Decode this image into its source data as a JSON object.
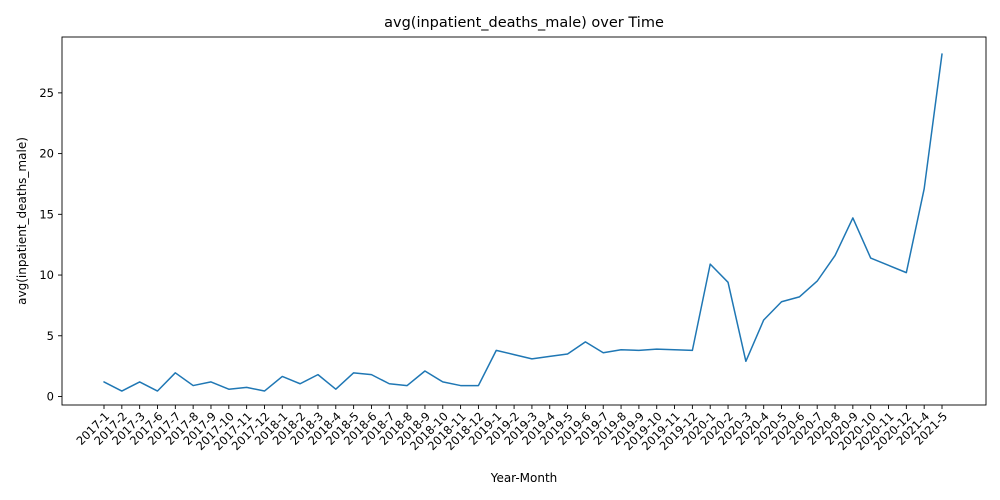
{
  "chart_data": {
    "type": "line",
    "title": "avg(inpatient_deaths_male) over Time",
    "xlabel": "Year-Month",
    "ylabel": "avg(inpatient_deaths_male)",
    "ylim": [
      -0.7,
      29.6
    ],
    "yticks": [
      0,
      5,
      10,
      15,
      20,
      25
    ],
    "grid": false,
    "line_color": "#1f77b4",
    "categories": [
      "2017-1",
      "2017-2",
      "2017-3",
      "2017-6",
      "2017-7",
      "2017-8",
      "2017-9",
      "2017-10",
      "2017-11",
      "2017-12",
      "2018-1",
      "2018-2",
      "2018-3",
      "2018-4",
      "2018-5",
      "2018-6",
      "2018-7",
      "2018-8",
      "2018-9",
      "2018-10",
      "2018-11",
      "2018-12",
      "2019-1",
      "2019-2",
      "2019-3",
      "2019-4",
      "2019-5",
      "2019-6",
      "2019-7",
      "2019-8",
      "2019-9",
      "2019-10",
      "2019-11",
      "2019-12",
      "2020-1",
      "2020-2",
      "2020-3",
      "2020-4",
      "2020-5",
      "2020-6",
      "2020-7",
      "2020-8",
      "2020-9",
      "2020-10",
      "2020-11",
      "2020-12",
      "2021-4",
      "2021-5"
    ],
    "values": [
      1.2,
      0.45,
      1.2,
      0.45,
      1.95,
      0.9,
      1.2,
      0.6,
      0.75,
      0.45,
      1.65,
      1.05,
      1.8,
      0.6,
      1.95,
      1.8,
      1.05,
      0.9,
      2.1,
      1.2,
      0.9,
      0.9,
      3.8,
      3.45,
      3.1,
      3.3,
      3.5,
      4.5,
      3.6,
      3.85,
      3.8,
      3.9,
      3.85,
      3.8,
      10.9,
      9.4,
      2.9,
      6.3,
      7.8,
      8.2,
      9.5,
      11.6,
      14.7,
      11.4,
      10.8,
      10.2,
      17.1,
      28.2
    ]
  }
}
